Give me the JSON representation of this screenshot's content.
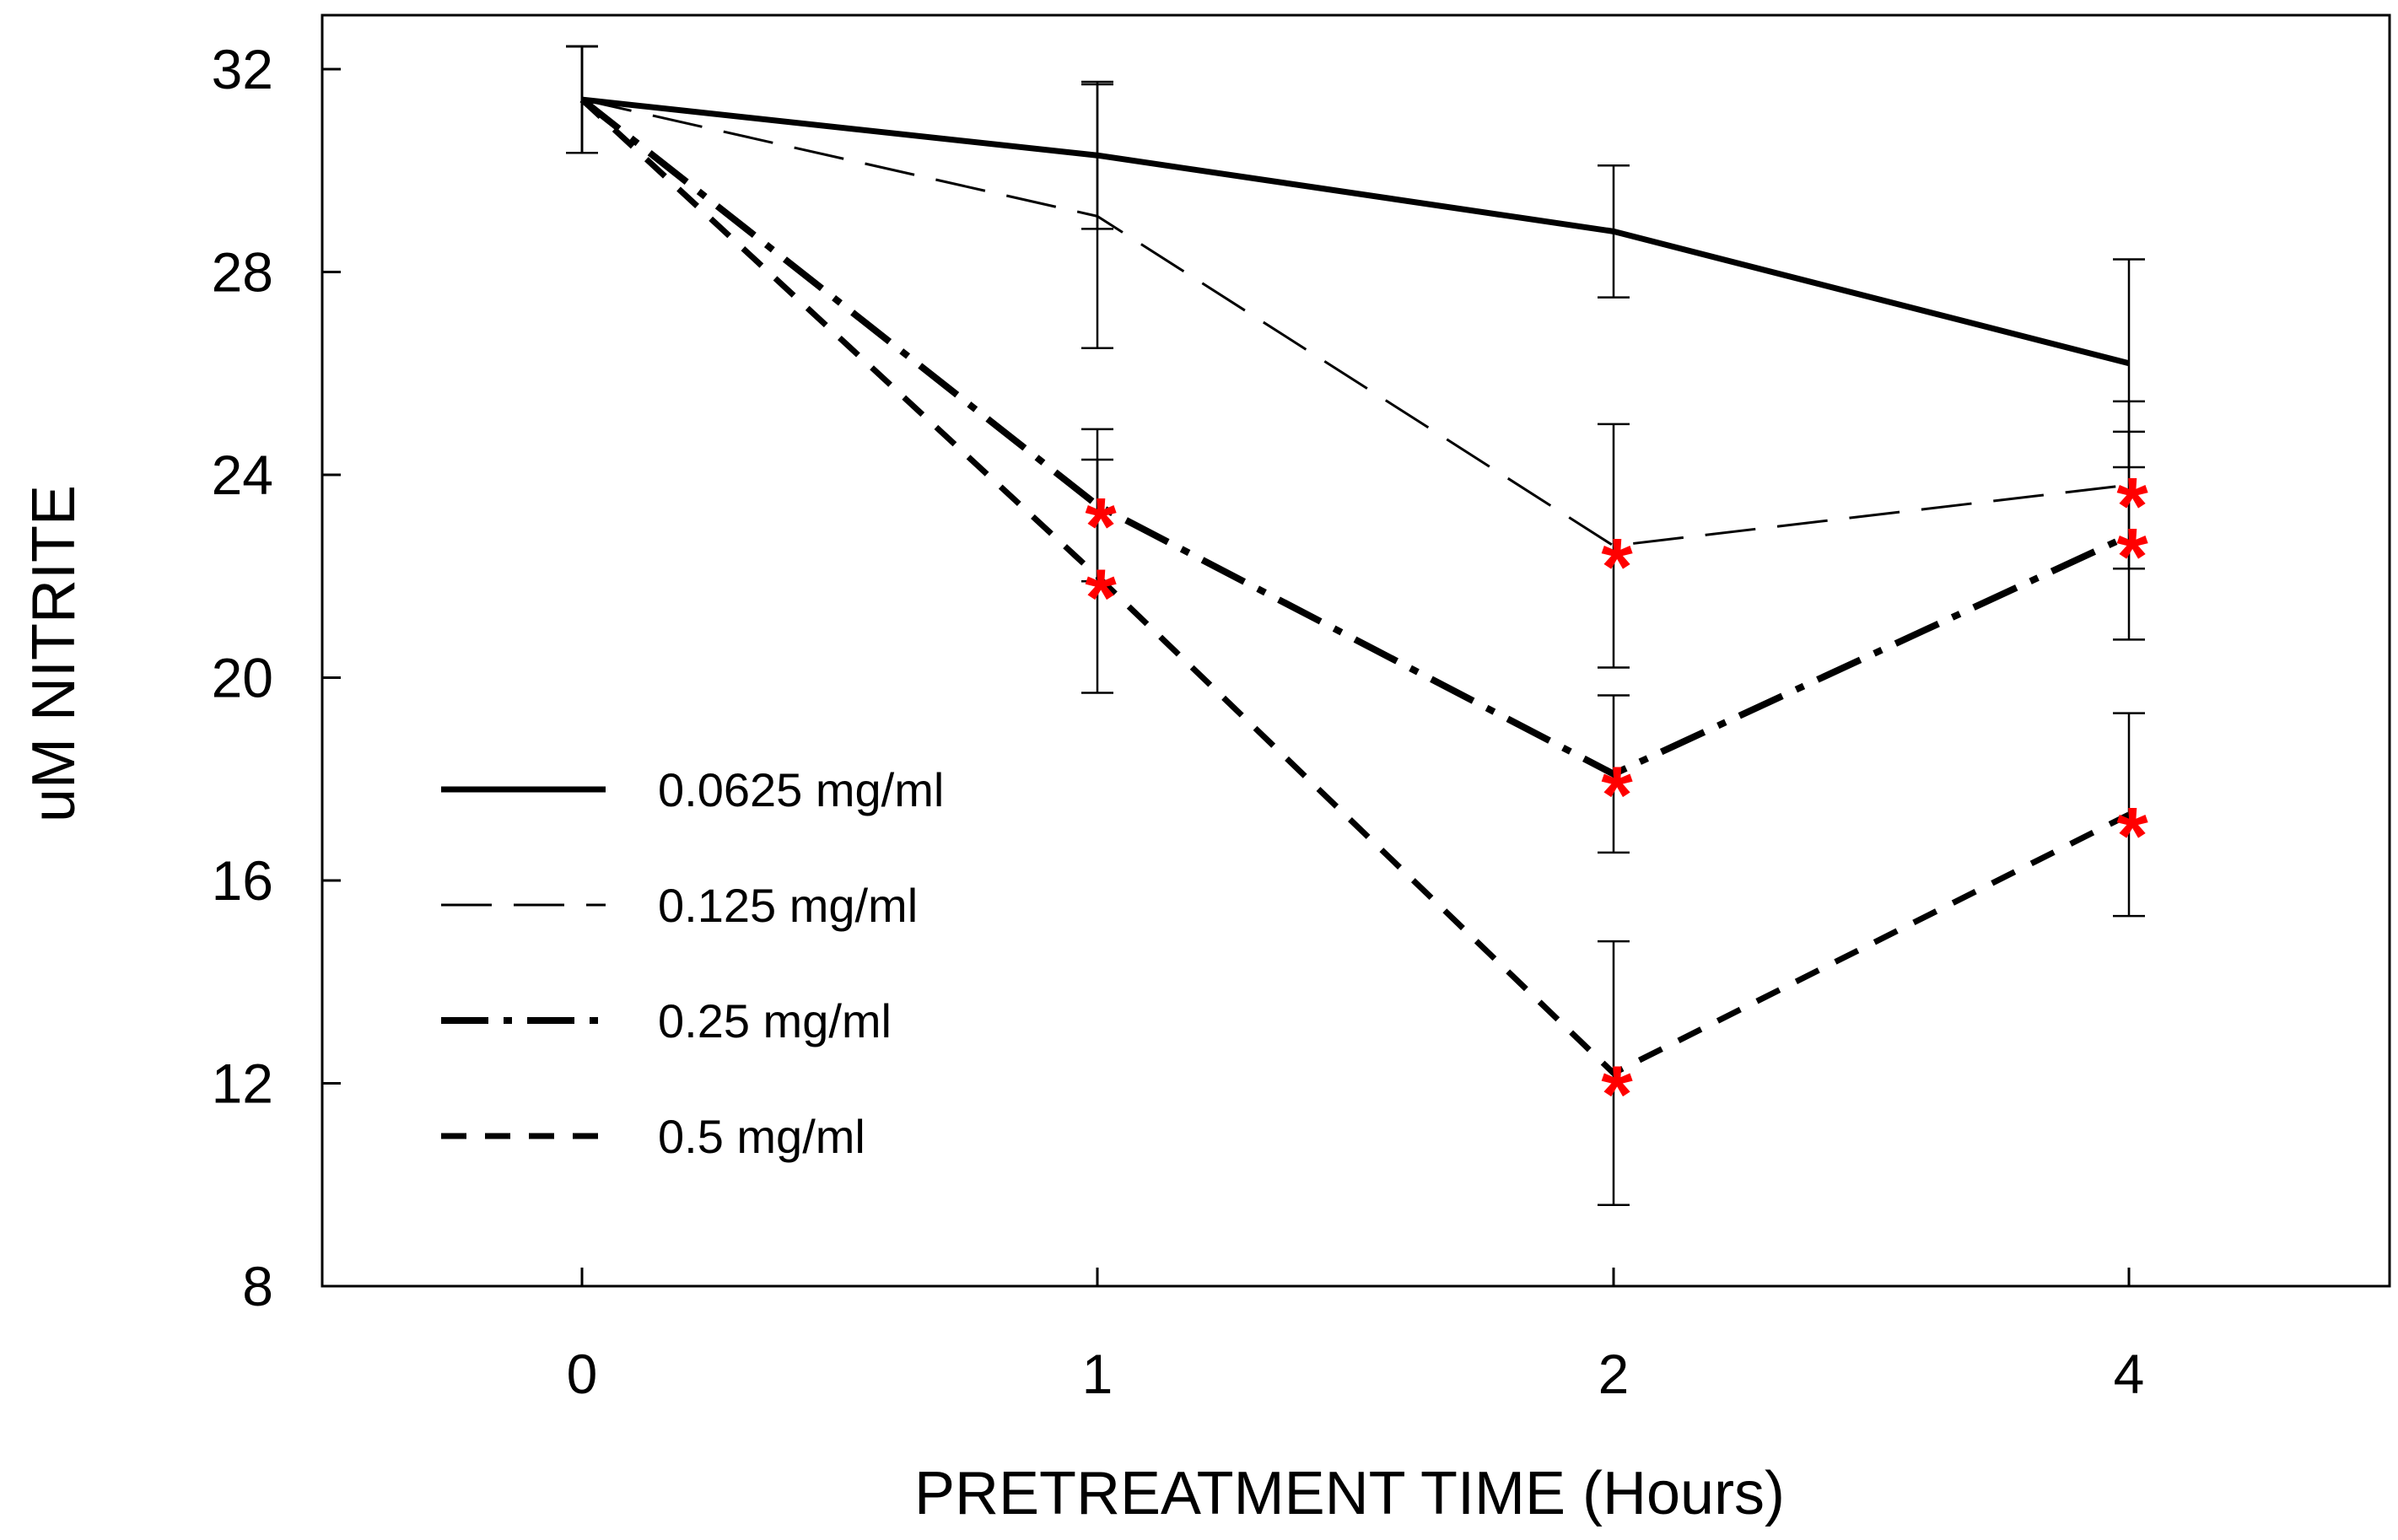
{
  "chart_data": {
    "type": "line",
    "title": "",
    "xlabel": "PRETREATMENT TIME (Hours)",
    "ylabel": "uM NITRITE",
    "categories": [
      "0",
      "1",
      "2",
      "4"
    ],
    "ylim": [
      8,
      33
    ],
    "yticks": [
      32,
      28,
      24,
      20,
      16,
      12,
      8
    ],
    "grid": false,
    "legend_position": "lower-left",
    "marker_color": "#ff0000",
    "line_color": "#000000",
    "series": [
      {
        "name": "0.0625 mg/ml",
        "style": "solid-thick",
        "values": [
          31.4,
          30.3,
          28.8,
          26.2
        ],
        "errors": [
          1.05,
          1.45,
          1.3,
          2.05
        ],
        "significant": [
          false,
          false,
          false,
          false
        ]
      },
      {
        "name": "0.125 mg/ml",
        "style": "dashed-thin",
        "values": [
          31.4,
          29.1,
          22.6,
          23.8
        ],
        "errors": [
          1.05,
          2.6,
          2.4,
          1.65
        ],
        "significant": [
          false,
          false,
          true,
          true
        ]
      },
      {
        "name": "0.25 mg/ml",
        "style": "dash-dot-thick",
        "values": [
          31.4,
          23.4,
          18.1,
          22.8
        ],
        "errors": [
          1.05,
          1.5,
          1.55,
          2.05
        ],
        "significant": [
          false,
          true,
          true,
          true
        ]
      },
      {
        "name": "0.5 mg/ml",
        "style": "dashed-thick",
        "values": [
          31.4,
          22.0,
          12.2,
          17.3
        ],
        "errors": [
          1.05,
          2.3,
          2.6,
          2.0
        ],
        "significant": [
          false,
          true,
          true,
          true
        ]
      }
    ],
    "significance_marker": "*"
  }
}
